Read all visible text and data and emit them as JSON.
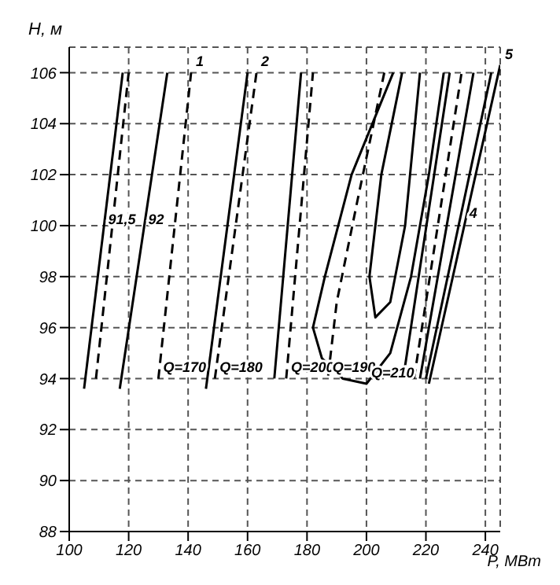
{
  "chart_data": {
    "type": "line",
    "xlabel": "P, МВт",
    "ylabel": "H, м",
    "xlim": [
      100,
      245
    ],
    "xticks": [
      100,
      120,
      140,
      160,
      180,
      200,
      220,
      240
    ],
    "ylim": [
      88,
      107
    ],
    "yticks": [
      88,
      90,
      92,
      94,
      96,
      98,
      100,
      102,
      104,
      106
    ],
    "grid": true,
    "marker": "none",
    "series": [
      {
        "color": "#000000",
        "line_style": "solid",
        "x": [
          105,
          118
        ],
        "values": [
          93.6,
          106
        ]
      },
      {
        "color": "#000000",
        "line_style": "dashed",
        "x": [
          109,
          120
        ],
        "values": [
          94,
          106
        ]
      },
      {
        "color": "#000000",
        "line_style": "solid",
        "x": [
          117,
          133
        ],
        "values": [
          93.6,
          106
        ]
      },
      {
        "color": "#000000",
        "line_style": "dashed",
        "x": [
          130,
          141
        ],
        "values": [
          94,
          106
        ]
      },
      {
        "color": "#000000",
        "line_style": "solid",
        "x": [
          146,
          160
        ],
        "values": [
          93.6,
          106
        ]
      },
      {
        "color": "#000000",
        "line_style": "dashed",
        "x": [
          149,
          163
        ],
        "values": [
          94,
          106
        ]
      },
      {
        "color": "#000000",
        "line_style": "solid",
        "x": [
          169,
          178
        ],
        "values": [
          94,
          106
        ]
      },
      {
        "color": "#000000",
        "line_style": "dashed",
        "x": [
          173,
          182
        ],
        "values": [
          94,
          106
        ]
      },
      {
        "color": "#000000",
        "line_style": "solid",
        "x": [
          209,
          195,
          186,
          182,
          185,
          192,
          200,
          208,
          215,
          221,
          226
        ],
        "values": [
          106,
          102,
          98,
          96,
          94.8,
          94,
          93.8,
          95,
          98,
          102,
          106
        ]
      },
      {
        "color": "#000000",
        "line_style": "dashed",
        "x": [
          206,
          197,
          190,
          187
        ],
        "values": [
          106,
          101,
          97,
          94
        ]
      },
      {
        "color": "#000000",
        "line_style": "solid",
        "x": [
          212,
          205,
          201,
          203,
          208,
          213,
          218
        ],
        "values": [
          106,
          102,
          98,
          96.4,
          97,
          100,
          106
        ]
      },
      {
        "color": "#000000",
        "line_style": "solid",
        "x": [
          213,
          228
        ],
        "values": [
          94.5,
          106
        ]
      },
      {
        "color": "#000000",
        "line_style": "dashed",
        "x": [
          216,
          232
        ],
        "values": [
          94,
          106
        ]
      },
      {
        "color": "#000000",
        "line_style": "solid",
        "x": [
          218,
          236
        ],
        "values": [
          94,
          106
        ]
      },
      {
        "color": "#000000",
        "line_style": "solid",
        "x": [
          220,
          242
        ],
        "values": [
          94,
          106
        ]
      },
      {
        "color": "#000000",
        "line_style": "solid",
        "x": [
          221,
          245
        ],
        "values": [
          93.8,
          106.3
        ]
      }
    ],
    "annotations": [
      {
        "text": "1",
        "x": 141,
        "y": 106
      },
      {
        "text": "2",
        "x": 163,
        "y": 106
      },
      {
        "text": "5",
        "x": 245,
        "y": 106.3
      },
      {
        "text": "4",
        "x": 233,
        "y": 100.05
      },
      {
        "text": "Q=170",
        "x": 130,
        "y": 94
      },
      {
        "text": "Q=180",
        "x": 149,
        "y": 94
      },
      {
        "text": "Q=200",
        "x": 173,
        "y": 94
      },
      {
        "text": "Q=190",
        "x": 187,
        "y": 94
      },
      {
        "text": "Q=210",
        "x": 200,
        "y": 93.8
      },
      {
        "text": "91,5",
        "x": 111.5,
        "y": 99.8
      },
      {
        "text": "92",
        "x": 125,
        "y": 99.8
      }
    ]
  }
}
